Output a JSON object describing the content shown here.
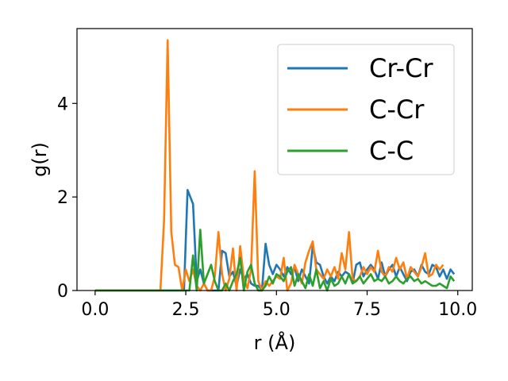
{
  "chart_data": {
    "type": "line",
    "title": "",
    "xlabel": "r (Å)",
    "ylabel": "g(r)",
    "xlim": [
      -0.5,
      10.4
    ],
    "ylim": [
      0,
      5.6
    ],
    "xticks": [
      0.0,
      2.5,
      5.0,
      7.5,
      10.0
    ],
    "xtick_labels": [
      "0.0",
      "2.5",
      "5.0",
      "7.5",
      "10.0"
    ],
    "yticks": [
      0,
      2,
      4
    ],
    "ytick_labels": [
      "0",
      "2",
      "4"
    ],
    "grid": false,
    "legend_position": "top-right",
    "series": [
      {
        "name": "Cr-Cr",
        "color": "#1f77b4",
        "points": [
          [
            0.0,
            0
          ],
          [
            2.3,
            0
          ],
          [
            2.45,
            0.0
          ],
          [
            2.55,
            2.15
          ],
          [
            2.7,
            1.85
          ],
          [
            2.8,
            0.2
          ],
          [
            2.9,
            0.45
          ],
          [
            3.0,
            0.15
          ],
          [
            3.1,
            0.0
          ],
          [
            3.4,
            0.0
          ],
          [
            3.5,
            0.85
          ],
          [
            3.6,
            0.8
          ],
          [
            3.7,
            0.3
          ],
          [
            3.8,
            0.4
          ],
          [
            3.9,
            0.1
          ],
          [
            4.0,
            0.45
          ],
          [
            4.1,
            0.25
          ],
          [
            4.2,
            0.35
          ],
          [
            4.3,
            0.15
          ],
          [
            4.4,
            0.1
          ],
          [
            4.5,
            0.1
          ],
          [
            4.6,
            0.0
          ],
          [
            4.7,
            1.0
          ],
          [
            4.8,
            0.55
          ],
          [
            4.9,
            0.35
          ],
          [
            5.0,
            0.55
          ],
          [
            5.1,
            0.45
          ],
          [
            5.2,
            0.3
          ],
          [
            5.3,
            0.5
          ],
          [
            5.4,
            0.35
          ],
          [
            5.5,
            0.5
          ],
          [
            5.6,
            0.2
          ],
          [
            5.7,
            0.45
          ],
          [
            5.8,
            0.3
          ],
          [
            5.9,
            0.15
          ],
          [
            6.0,
            0.95
          ],
          [
            6.1,
            0.6
          ],
          [
            6.2,
            0.55
          ],
          [
            6.3,
            0.3
          ],
          [
            6.4,
            0.15
          ],
          [
            6.5,
            0.3
          ],
          [
            6.6,
            0.2
          ],
          [
            6.7,
            0.4
          ],
          [
            6.8,
            0.3
          ],
          [
            6.9,
            0.4
          ],
          [
            7.0,
            0.35
          ],
          [
            7.1,
            0.15
          ],
          [
            7.2,
            0.55
          ],
          [
            7.3,
            0.6
          ],
          [
            7.4,
            0.3
          ],
          [
            7.5,
            0.45
          ],
          [
            7.6,
            0.55
          ],
          [
            7.7,
            0.45
          ],
          [
            7.8,
            0.25
          ],
          [
            7.9,
            0.6
          ],
          [
            8.0,
            0.3
          ],
          [
            8.1,
            0.45
          ],
          [
            8.2,
            0.55
          ],
          [
            8.3,
            0.3
          ],
          [
            8.4,
            0.5
          ],
          [
            8.5,
            0.35
          ],
          [
            8.6,
            0.2
          ],
          [
            8.7,
            0.4
          ],
          [
            8.8,
            0.45
          ],
          [
            8.9,
            0.3
          ],
          [
            9.0,
            0.55
          ],
          [
            9.1,
            0.4
          ],
          [
            9.2,
            0.35
          ],
          [
            9.3,
            0.55
          ],
          [
            9.4,
            0.5
          ],
          [
            9.5,
            0.3
          ],
          [
            9.6,
            0.45
          ],
          [
            9.7,
            0.25
          ],
          [
            9.8,
            0.45
          ],
          [
            9.9,
            0.35
          ]
        ]
      },
      {
        "name": "C-Cr",
        "color": "#ff7f0e",
        "points": [
          [
            0.0,
            0
          ],
          [
            1.8,
            0
          ],
          [
            1.9,
            1.5
          ],
          [
            2.0,
            5.35
          ],
          [
            2.1,
            1.25
          ],
          [
            2.2,
            0.55
          ],
          [
            2.3,
            0.5
          ],
          [
            2.4,
            0.0
          ],
          [
            2.5,
            0.45
          ],
          [
            2.6,
            0.2
          ],
          [
            2.7,
            0.45
          ],
          [
            2.8,
            0.1
          ],
          [
            2.9,
            0.0
          ],
          [
            3.0,
            0.15
          ],
          [
            3.1,
            0.0
          ],
          [
            3.2,
            0.0
          ],
          [
            3.3,
            0.3
          ],
          [
            3.4,
            1.25
          ],
          [
            3.5,
            0.35
          ],
          [
            3.6,
            0.0
          ],
          [
            3.7,
            0.25
          ],
          [
            3.8,
            0.9
          ],
          [
            3.9,
            0.0
          ],
          [
            4.0,
            0.95
          ],
          [
            4.1,
            0.25
          ],
          [
            4.2,
            0.05
          ],
          [
            4.3,
            0.45
          ],
          [
            4.4,
            2.55
          ],
          [
            4.5,
            0.2
          ],
          [
            4.6,
            0.0
          ],
          [
            4.7,
            0.2
          ],
          [
            4.8,
            0.1
          ],
          [
            4.9,
            0.2
          ],
          [
            5.0,
            0.3
          ],
          [
            5.1,
            0.25
          ],
          [
            5.2,
            0.7
          ],
          [
            5.3,
            0.0
          ],
          [
            5.4,
            0.15
          ],
          [
            5.5,
            0.55
          ],
          [
            5.6,
            0.35
          ],
          [
            5.7,
            0.15
          ],
          [
            5.8,
            0.6
          ],
          [
            5.9,
            0.85
          ],
          [
            6.0,
            1.05
          ],
          [
            6.1,
            0.45
          ],
          [
            6.2,
            0.35
          ],
          [
            6.3,
            0.25
          ],
          [
            6.4,
            0.45
          ],
          [
            6.5,
            0.3
          ],
          [
            6.6,
            0.5
          ],
          [
            6.7,
            0.25
          ],
          [
            6.8,
            0.8
          ],
          [
            6.9,
            0.45
          ],
          [
            7.0,
            1.25
          ],
          [
            7.1,
            0.25
          ],
          [
            7.2,
            0.2
          ],
          [
            7.3,
            0.3
          ],
          [
            7.4,
            0.5
          ],
          [
            7.5,
            0.35
          ],
          [
            7.6,
            0.5
          ],
          [
            7.7,
            0.4
          ],
          [
            7.8,
            0.85
          ],
          [
            7.9,
            0.4
          ],
          [
            8.0,
            0.3
          ],
          [
            8.1,
            0.5
          ],
          [
            8.2,
            0.4
          ],
          [
            8.3,
            0.7
          ],
          [
            8.4,
            0.45
          ],
          [
            8.5,
            0.6
          ],
          [
            8.6,
            0.25
          ],
          [
            8.7,
            0.5
          ],
          [
            8.8,
            0.4
          ],
          [
            8.9,
            0.3
          ],
          [
            9.0,
            0.5
          ],
          [
            9.1,
            0.8
          ],
          [
            9.2,
            0.3
          ],
          [
            9.3,
            0.35
          ],
          [
            9.4,
            0.55
          ],
          [
            9.5,
            0.45
          ],
          [
            9.6,
            0.55
          ]
        ]
      },
      {
        "name": "C-C",
        "color": "#2ca02c",
        "points": [
          [
            0.0,
            0
          ],
          [
            2.6,
            0
          ],
          [
            2.7,
            0.75
          ],
          [
            2.8,
            0.0
          ],
          [
            2.9,
            1.3
          ],
          [
            3.0,
            0.15
          ],
          [
            3.1,
            0.35
          ],
          [
            3.2,
            0.55
          ],
          [
            3.3,
            0.2
          ],
          [
            3.4,
            0.0
          ],
          [
            3.5,
            0.0
          ],
          [
            3.6,
            0.15
          ],
          [
            3.7,
            0.0
          ],
          [
            3.8,
            0.2
          ],
          [
            3.9,
            0.35
          ],
          [
            4.0,
            0.7
          ],
          [
            4.1,
            0.0
          ],
          [
            4.2,
            0.4
          ],
          [
            4.3,
            0.55
          ],
          [
            4.4,
            0.15
          ],
          [
            4.5,
            0.0
          ],
          [
            4.6,
            0.0
          ],
          [
            4.7,
            0.1
          ],
          [
            4.8,
            0.3
          ],
          [
            4.9,
            0.15
          ],
          [
            5.0,
            0.35
          ],
          [
            5.1,
            0.3
          ],
          [
            5.2,
            0.2
          ],
          [
            5.3,
            0.4
          ],
          [
            5.4,
            0.5
          ],
          [
            5.5,
            0.1
          ],
          [
            5.6,
            0.35
          ],
          [
            5.7,
            0.2
          ],
          [
            5.8,
            0.05
          ],
          [
            5.9,
            0.35
          ],
          [
            6.0,
            0.1
          ],
          [
            6.1,
            0.45
          ],
          [
            6.2,
            0.05
          ],
          [
            6.3,
            0.2
          ],
          [
            6.4,
            0.0
          ],
          [
            6.5,
            0.25
          ],
          [
            6.6,
            0.1
          ],
          [
            6.7,
            0.15
          ],
          [
            6.8,
            0.3
          ],
          [
            6.9,
            0.15
          ],
          [
            7.0,
            0.35
          ],
          [
            7.1,
            0.15
          ],
          [
            7.2,
            0.2
          ],
          [
            7.3,
            0.3
          ],
          [
            7.4,
            0.15
          ],
          [
            7.5,
            0.25
          ],
          [
            7.6,
            0.35
          ],
          [
            7.7,
            0.2
          ],
          [
            7.8,
            0.25
          ],
          [
            7.9,
            0.2
          ],
          [
            8.0,
            0.3
          ],
          [
            8.1,
            0.15
          ],
          [
            8.2,
            0.2
          ],
          [
            8.3,
            0.3
          ],
          [
            8.4,
            0.2
          ],
          [
            8.5,
            0.15
          ],
          [
            8.6,
            0.25
          ],
          [
            8.7,
            0.3
          ],
          [
            8.8,
            0.2
          ],
          [
            8.9,
            0.25
          ],
          [
            9.0,
            0.15
          ],
          [
            9.1,
            0.2
          ],
          [
            9.2,
            0.15
          ],
          [
            9.3,
            0.1
          ],
          [
            9.4,
            0.1
          ],
          [
            9.5,
            0.15
          ],
          [
            9.6,
            0.1
          ],
          [
            9.7,
            0.05
          ],
          [
            9.8,
            0.3
          ],
          [
            9.9,
            0.2
          ]
        ]
      }
    ]
  }
}
